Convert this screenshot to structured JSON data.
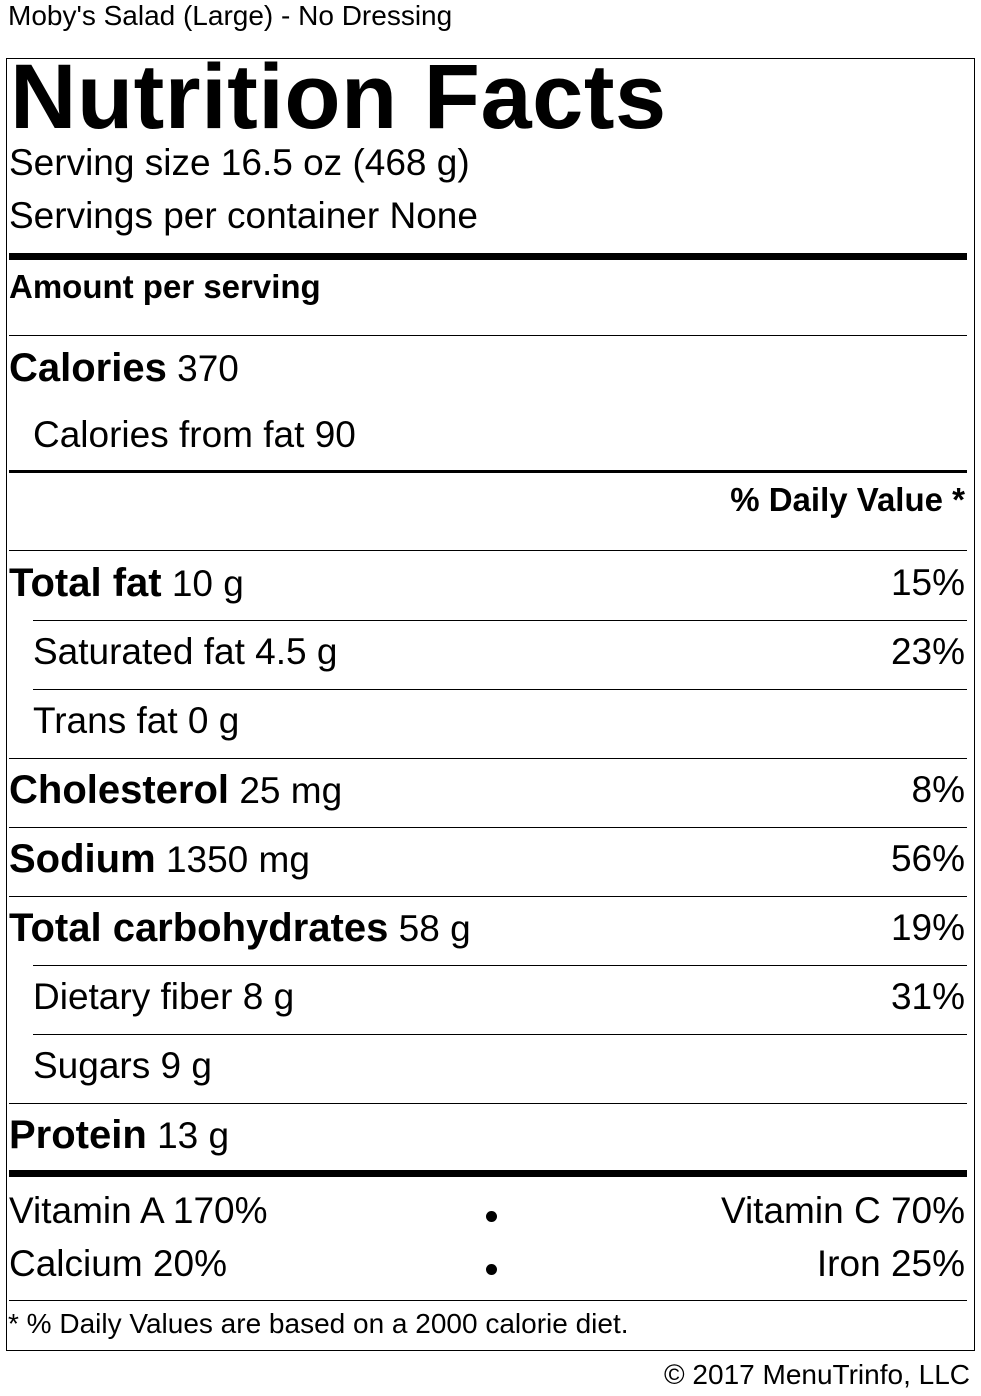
{
  "document": {
    "title": "Moby's Salad (Large) - No Dressing"
  },
  "label": {
    "heading": "Nutrition Facts",
    "serving_size": "Serving size 16.5 oz (468 g)",
    "servings_per_container": "Servings per container None",
    "amount_per_serving": "Amount per serving",
    "calories": {
      "name": "Calories",
      "value": "370"
    },
    "calories_from_fat": {
      "name": "Calories from fat",
      "value": "90"
    },
    "daily_value_header": "% Daily Value *",
    "nutrients": [
      {
        "name": "Total fat",
        "amount": "10 g",
        "dv": "15%"
      },
      {
        "name": "Saturated fat",
        "amount": "4.5 g",
        "dv": "23%"
      },
      {
        "name": "Trans fat",
        "amount": "0 g",
        "dv": ""
      },
      {
        "name": "Cholesterol",
        "amount": "25 mg",
        "dv": "8%"
      },
      {
        "name": "Sodium",
        "amount": "1350 mg",
        "dv": "56%"
      },
      {
        "name": "Total carbohydrates",
        "amount": "58 g",
        "dv": "19%"
      },
      {
        "name": "Dietary fiber",
        "amount": "8 g",
        "dv": "31%"
      },
      {
        "name": "Sugars",
        "amount": "9 g",
        "dv": ""
      },
      {
        "name": "Protein",
        "amount": "13 g",
        "dv": ""
      }
    ],
    "vitamins": {
      "vitamin_a": "Vitamin A 170%",
      "vitamin_c": "Vitamin C 70%",
      "calcium": "Calcium 20%",
      "iron": "Iron 25%"
    },
    "footnote": "* % Daily Values are based on a 2000 calorie diet."
  },
  "copyright": "© 2017 MenuTrinfo, LLC"
}
